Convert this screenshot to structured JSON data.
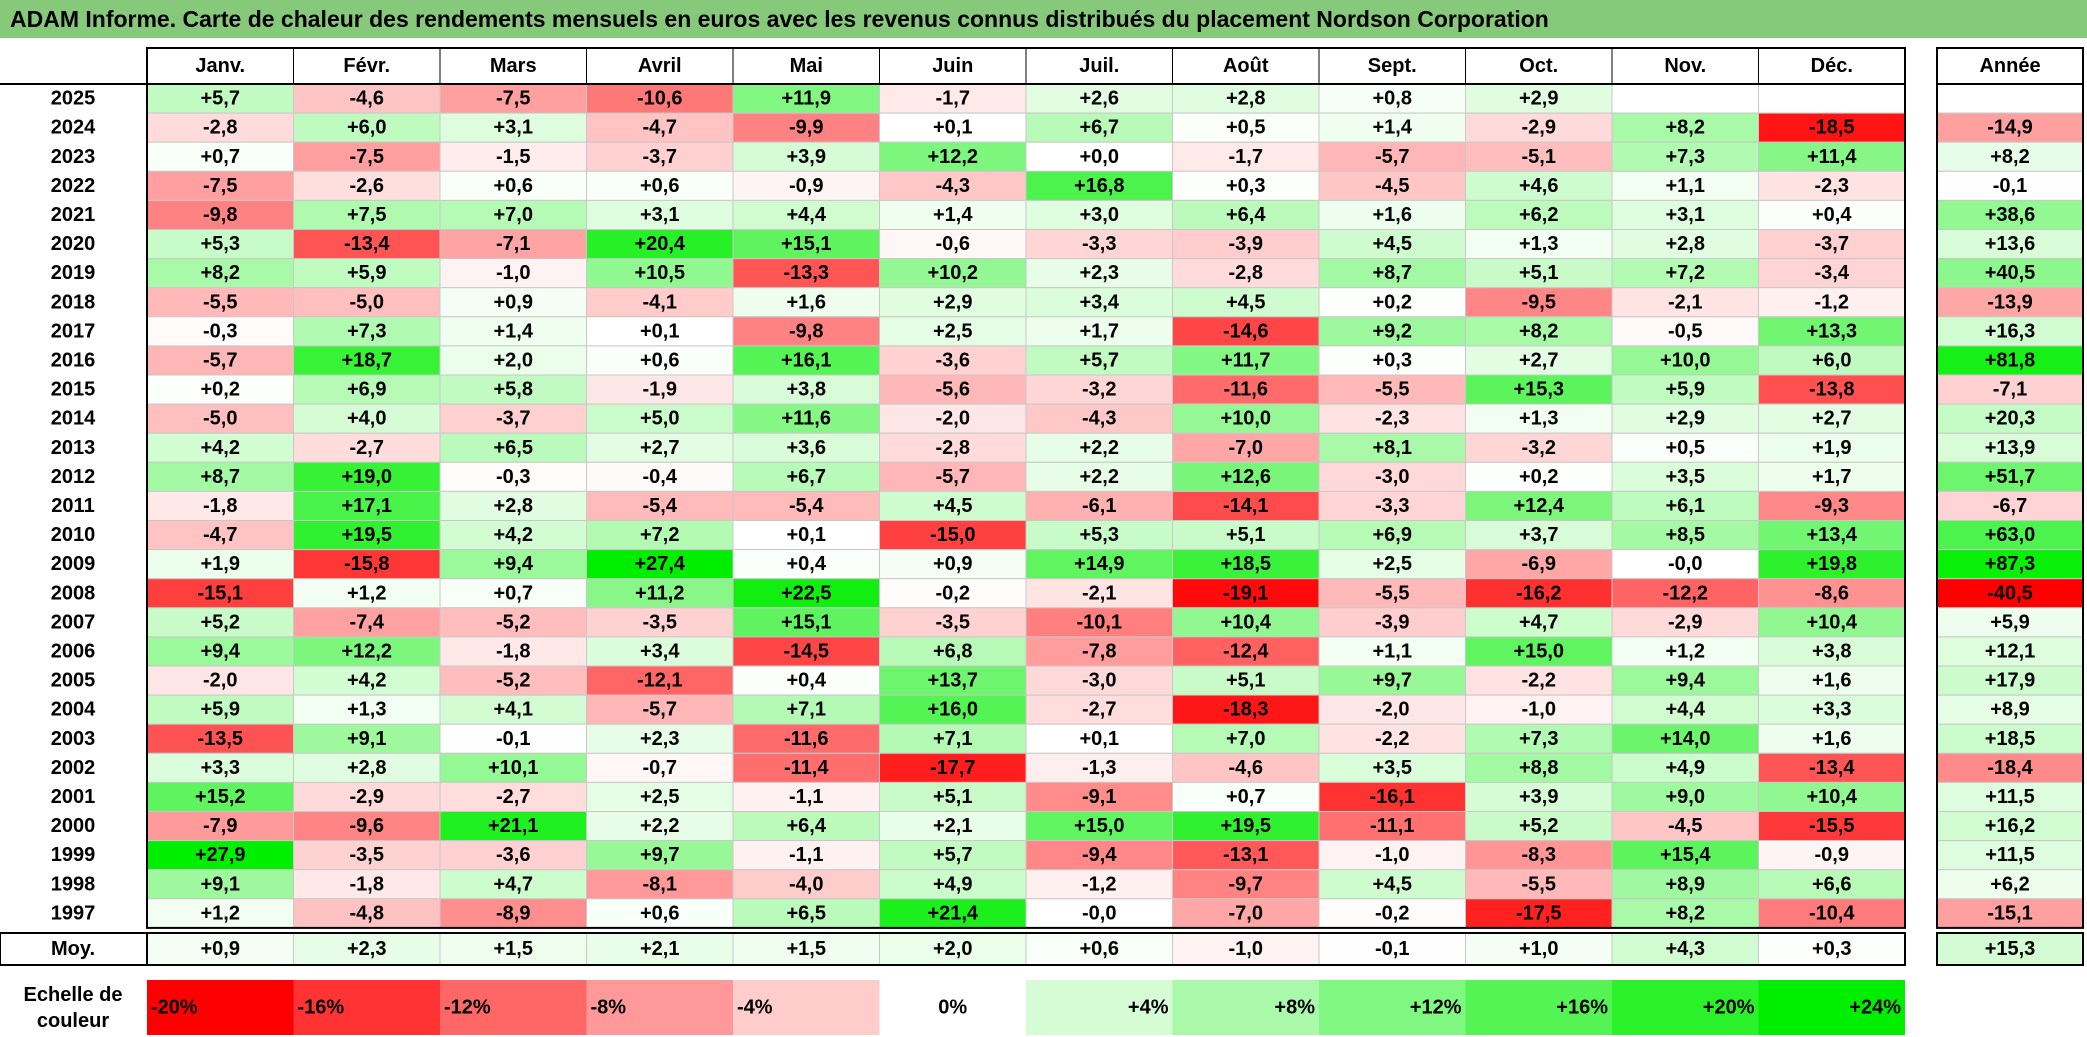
{
  "title": "ADAM Informe. Carte de chaleur des rendements mensuels en euros avec les revenus connus distribués du placement Nordson Corporation",
  "chart_data": {
    "type": "heatmap",
    "months": [
      "Janv.",
      "Févr.",
      "Mars",
      "Avril",
      "Mai",
      "Juin",
      "Juil.",
      "Août",
      "Sept.",
      "Oct.",
      "Nov.",
      "Déc."
    ],
    "year_header": "Année",
    "rows": [
      {
        "year": "2025",
        "values": [
          "+5,7",
          "-4,6",
          "-7,5",
          "-10,6",
          "+11,9",
          "-1,7",
          "+2,6",
          "+2,8",
          "+0,8",
          "+2,9",
          "",
          ""
        ],
        "annual": ""
      },
      {
        "year": "2024",
        "values": [
          "-2,8",
          "+6,0",
          "+3,1",
          "-4,7",
          "-9,9",
          "+0,1",
          "+6,7",
          "+0,5",
          "+1,4",
          "-2,9",
          "+8,2",
          "-18,5"
        ],
        "annual": "-14,9"
      },
      {
        "year": "2023",
        "values": [
          "+0,7",
          "-7,5",
          "-1,5",
          "-3,7",
          "+3,9",
          "+12,2",
          "+0,0",
          "-1,7",
          "-5,7",
          "-5,1",
          "+7,3",
          "+11,4"
        ],
        "annual": "+8,2"
      },
      {
        "year": "2022",
        "values": [
          "-7,5",
          "-2,6",
          "+0,6",
          "+0,6",
          "-0,9",
          "-4,3",
          "+16,8",
          "+0,3",
          "-4,5",
          "+4,6",
          "+1,1",
          "-2,3"
        ],
        "annual": "-0,1"
      },
      {
        "year": "2021",
        "values": [
          "-9,8",
          "+7,5",
          "+7,0",
          "+3,1",
          "+4,4",
          "+1,4",
          "+3,0",
          "+6,4",
          "+1,6",
          "+6,2",
          "+3,1",
          "+0,4"
        ],
        "annual": "+38,6"
      },
      {
        "year": "2020",
        "values": [
          "+5,3",
          "-13,4",
          "-7,1",
          "+20,4",
          "+15,1",
          "-0,6",
          "-3,3",
          "-3,9",
          "+4,5",
          "+1,3",
          "+2,8",
          "-3,7"
        ],
        "annual": "+13,6"
      },
      {
        "year": "2019",
        "values": [
          "+8,2",
          "+5,9",
          "-1,0",
          "+10,5",
          "-13,3",
          "+10,2",
          "+2,3",
          "-2,8",
          "+8,7",
          "+5,1",
          "+7,2",
          "-3,4"
        ],
        "annual": "+40,5"
      },
      {
        "year": "2018",
        "values": [
          "-5,5",
          "-5,0",
          "+0,9",
          "-4,1",
          "+1,6",
          "+2,9",
          "+3,4",
          "+4,5",
          "+0,2",
          "-9,5",
          "-2,1",
          "-1,2"
        ],
        "annual": "-13,9"
      },
      {
        "year": "2017",
        "values": [
          "-0,3",
          "+7,3",
          "+1,4",
          "+0,1",
          "-9,8",
          "+2,5",
          "+1,7",
          "-14,6",
          "+9,2",
          "+8,2",
          "-0,5",
          "+13,3"
        ],
        "annual": "+16,3"
      },
      {
        "year": "2016",
        "values": [
          "-5,7",
          "+18,7",
          "+2,0",
          "+0,6",
          "+16,1",
          "-3,6",
          "+5,7",
          "+11,7",
          "+0,3",
          "+2,7",
          "+10,0",
          "+6,0"
        ],
        "annual": "+81,8"
      },
      {
        "year": "2015",
        "values": [
          "+0,2",
          "+6,9",
          "+5,8",
          "-1,9",
          "+3,8",
          "-5,6",
          "-3,2",
          "-11,6",
          "-5,5",
          "+15,3",
          "+5,9",
          "-13,8"
        ],
        "annual": "-7,1"
      },
      {
        "year": "2014",
        "values": [
          "-5,0",
          "+4,0",
          "-3,7",
          "+5,0",
          "+11,6",
          "-2,0",
          "-4,3",
          "+10,0",
          "-2,3",
          "+1,3",
          "+2,9",
          "+2,7"
        ],
        "annual": "+20,3"
      },
      {
        "year": "2013",
        "values": [
          "+4,2",
          "-2,7",
          "+6,5",
          "+2,7",
          "+3,6",
          "-2,8",
          "+2,2",
          "-7,0",
          "+8,1",
          "-3,2",
          "+0,5",
          "+1,9"
        ],
        "annual": "+13,9"
      },
      {
        "year": "2012",
        "values": [
          "+8,7",
          "+19,0",
          "-0,3",
          "-0,4",
          "+6,7",
          "-5,7",
          "+2,2",
          "+12,6",
          "-3,0",
          "+0,2",
          "+3,5",
          "+1,7"
        ],
        "annual": "+51,7"
      },
      {
        "year": "2011",
        "values": [
          "-1,8",
          "+17,1",
          "+2,8",
          "-5,4",
          "-5,4",
          "+4,5",
          "-6,1",
          "-14,1",
          "-3,3",
          "+12,4",
          "+6,1",
          "-9,3"
        ],
        "annual": "-6,7"
      },
      {
        "year": "2010",
        "values": [
          "-4,7",
          "+19,5",
          "+4,2",
          "+7,2",
          "+0,1",
          "-15,0",
          "+5,3",
          "+5,1",
          "+6,9",
          "+3,7",
          "+8,5",
          "+13,4"
        ],
        "annual": "+63,0"
      },
      {
        "year": "2009",
        "values": [
          "+1,9",
          "-15,8",
          "+9,4",
          "+27,4",
          "+0,4",
          "+0,9",
          "+14,9",
          "+18,5",
          "+2,5",
          "-6,9",
          "-0,0",
          "+19,8"
        ],
        "annual": "+87,3"
      },
      {
        "year": "2008",
        "values": [
          "-15,1",
          "+1,2",
          "+0,7",
          "+11,2",
          "+22,5",
          "-0,2",
          "-2,1",
          "-19,1",
          "-5,5",
          "-16,2",
          "-12,2",
          "-8,6"
        ],
        "annual": "-40,5"
      },
      {
        "year": "2007",
        "values": [
          "+5,2",
          "-7,4",
          "-5,2",
          "-3,5",
          "+15,1",
          "-3,5",
          "-10,1",
          "+10,4",
          "-3,9",
          "+4,7",
          "-2,9",
          "+10,4"
        ],
        "annual": "+5,9"
      },
      {
        "year": "2006",
        "values": [
          "+9,4",
          "+12,2",
          "-1,8",
          "+3,4",
          "-14,5",
          "+6,8",
          "-7,8",
          "-12,4",
          "+1,1",
          "+15,0",
          "+1,2",
          "+3,8"
        ],
        "annual": "+12,1"
      },
      {
        "year": "2005",
        "values": [
          "-2,0",
          "+4,2",
          "-5,2",
          "-12,1",
          "+0,4",
          "+13,7",
          "-3,0",
          "+5,1",
          "+9,7",
          "-2,2",
          "+9,4",
          "+1,6"
        ],
        "annual": "+17,9"
      },
      {
        "year": "2004",
        "values": [
          "+5,9",
          "+1,3",
          "+4,1",
          "-5,7",
          "+7,1",
          "+16,0",
          "-2,7",
          "-18,3",
          "-2,0",
          "-1,0",
          "+4,4",
          "+3,3"
        ],
        "annual": "+8,9"
      },
      {
        "year": "2003",
        "values": [
          "-13,5",
          "+9,1",
          "-0,1",
          "+2,3",
          "-11,6",
          "+7,1",
          "+0,1",
          "+7,0",
          "-2,2",
          "+7,3",
          "+14,0",
          "+1,6"
        ],
        "annual": "+18,5"
      },
      {
        "year": "2002",
        "values": [
          "+3,3",
          "+2,8",
          "+10,1",
          "-0,7",
          "-11,4",
          "-17,7",
          "-1,3",
          "-4,6",
          "+3,5",
          "+8,8",
          "+4,9",
          "-13,4"
        ],
        "annual": "-18,4"
      },
      {
        "year": "2001",
        "values": [
          "+15,2",
          "-2,9",
          "-2,7",
          "+2,5",
          "-1,1",
          "+5,1",
          "-9,1",
          "+0,7",
          "-16,1",
          "+3,9",
          "+9,0",
          "+10,4"
        ],
        "annual": "+11,5"
      },
      {
        "year": "2000",
        "values": [
          "-7,9",
          "-9,6",
          "+21,1",
          "+2,2",
          "+6,4",
          "+2,1",
          "+15,0",
          "+19,5",
          "-11,1",
          "+5,2",
          "-4,5",
          "-15,5"
        ],
        "annual": "+16,2"
      },
      {
        "year": "1999",
        "values": [
          "+27,9",
          "-3,5",
          "-3,6",
          "+9,7",
          "-1,1",
          "+5,7",
          "-9,4",
          "-13,1",
          "-1,0",
          "-8,3",
          "+15,4",
          "-0,9"
        ],
        "annual": "+11,5"
      },
      {
        "year": "1998",
        "values": [
          "+9,1",
          "-1,8",
          "+4,7",
          "-8,1",
          "-4,0",
          "+4,9",
          "-1,2",
          "-9,7",
          "+4,5",
          "-5,5",
          "+8,9",
          "+6,6"
        ],
        "annual": "+6,2"
      },
      {
        "year": "1997",
        "values": [
          "+1,2",
          "-4,8",
          "-8,9",
          "+0,6",
          "+6,5",
          "+21,4",
          "-0,0",
          "-7,0",
          "-0,2",
          "-17,5",
          "+8,2",
          "-10,4"
        ],
        "annual": "-15,1"
      }
    ],
    "average": {
      "label": "Moy.",
      "values": [
        "+0,9",
        "+2,3",
        "+1,5",
        "+2,1",
        "+1,5",
        "+2,0",
        "+0,6",
        "-1,0",
        "-0,1",
        "+1,0",
        "+4,3",
        "+0,3"
      ],
      "annual": "+15,3"
    },
    "scale": {
      "label_lines": [
        "Echelle de",
        "couleur"
      ],
      "stops": [
        "-20%",
        "-16%",
        "-12%",
        "-8%",
        "-4%",
        "0%",
        "+4%",
        "+8%",
        "+12%",
        "+16%",
        "+20%",
        "+24%"
      ]
    },
    "colors": {
      "title_bg": "#87c97a",
      "negative_max": "#ff0000",
      "neutral": "#ffffff",
      "positive_max": "#00ee00"
    }
  }
}
